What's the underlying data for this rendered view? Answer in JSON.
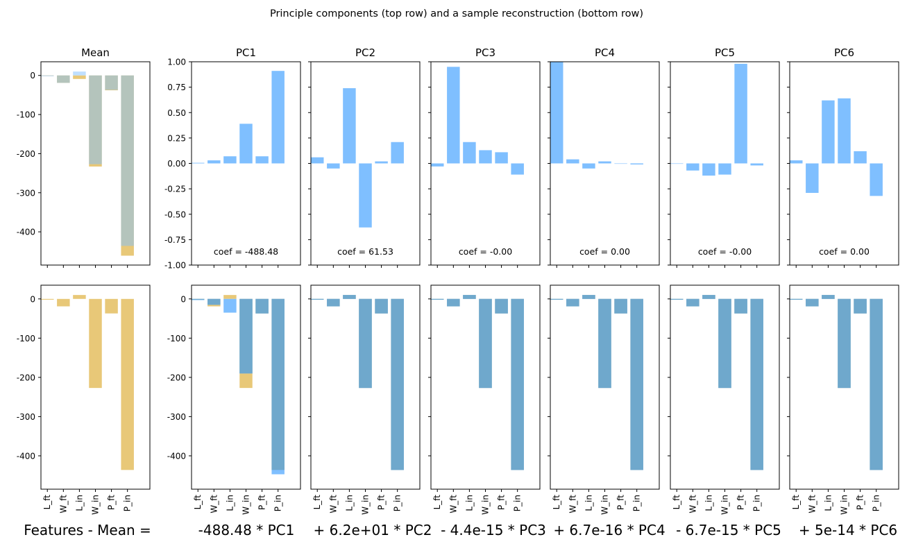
{
  "chart_data": {
    "type": "bar",
    "title": "Principle components (top row) and a sample reconstruction (bottom row)",
    "categories": [
      "L_ft",
      "W_ft",
      "L_in",
      "W_in",
      "P_ft",
      "P_in"
    ],
    "colors": {
      "component": "#7fbfff",
      "mean": "#e8c878",
      "reconstruction": "#6fa8cc",
      "overlap": "#b6b079"
    },
    "top_row": [
      {
        "title": "Mean",
        "ylim": [
          -485,
          35
        ],
        "yticks": [
          0,
          -100,
          -200,
          -300,
          -400
        ],
        "series": [
          {
            "name": "mean",
            "values": [
              0,
              -19,
              -9,
              -233,
              -38,
              -461
            ]
          },
          {
            "name": "sample",
            "values": [
              -2,
              -19,
              10,
              -227,
              -37,
              -436
            ]
          }
        ]
      },
      {
        "title": "PC1",
        "coef": "coef = -488.48",
        "ylim": [
          -1.0,
          1.0
        ],
        "yticks": [
          "1.00",
          "0.75",
          "0.50",
          "0.25",
          "0.00",
          "-0.25",
          "-0.50",
          "-0.75",
          "-1.00"
        ],
        "values": [
          0.006,
          0.03,
          0.07,
          0.39,
          0.07,
          0.91
        ]
      },
      {
        "title": "PC2",
        "coef": "coef = 61.53",
        "ylim": [
          -1.0,
          1.0
        ],
        "values": [
          0.06,
          -0.05,
          0.74,
          -0.63,
          0.02,
          0.21
        ]
      },
      {
        "title": "PC3",
        "coef": "coef = -0.00",
        "ylim": [
          -1.0,
          1.0
        ],
        "values": [
          -0.03,
          0.95,
          0.21,
          0.13,
          0.11,
          -0.11
        ]
      },
      {
        "title": "PC4",
        "coef": "coef = 0.00",
        "ylim": [
          -1.0,
          1.0
        ],
        "values": [
          1.0,
          0.04,
          -0.05,
          0.02,
          0.0,
          -0.01
        ]
      },
      {
        "title": "PC5",
        "coef": "coef = -0.00",
        "ylim": [
          -1.0,
          1.0
        ],
        "values": [
          0.0,
          -0.07,
          -0.12,
          -0.11,
          0.98,
          -0.02
        ]
      },
      {
        "title": "PC6",
        "coef": "coef = 0.00",
        "ylim": [
          -1.0,
          1.0
        ],
        "values": [
          0.03,
          -0.29,
          0.62,
          0.64,
          0.12,
          -0.32
        ]
      }
    ],
    "bottom_row": [
      {
        "label": "Features - Mean =",
        "ylim": [
          -485,
          35
        ],
        "yticks": [
          0,
          -100,
          -200,
          -300,
          -400
        ],
        "series": [
          {
            "name": "target",
            "values": [
              -2,
              -19,
              10,
              -227,
              -37,
              -436
            ]
          }
        ]
      },
      {
        "label": "-488.48 * PC1",
        "series": [
          {
            "name": "target",
            "values": [
              -2,
              -19,
              10,
              -227,
              -37,
              -436
            ]
          },
          {
            "name": "reconstruction",
            "values": [
              -3,
              -15,
              -35,
              -190,
              -37,
              -447
            ]
          }
        ]
      },
      {
        "label": "+ 6.2e+01 * PC2",
        "series": [
          {
            "name": "target",
            "values": [
              -2,
              -19,
              10,
              -227,
              -37,
              -436
            ]
          },
          {
            "name": "reconstruction",
            "values": [
              -2,
              -19,
              10,
              -227,
              -37,
              -436
            ]
          }
        ]
      },
      {
        "label": "- 4.4e-15 * PC3",
        "series": [
          {
            "name": "target",
            "values": [
              -2,
              -19,
              10,
              -227,
              -37,
              -436
            ]
          },
          {
            "name": "reconstruction",
            "values": [
              -2,
              -19,
              10,
              -227,
              -37,
              -436
            ]
          }
        ]
      },
      {
        "label": "+ 6.7e-16 * PC4",
        "series": [
          {
            "name": "target",
            "values": [
              -2,
              -19,
              10,
              -227,
              -37,
              -436
            ]
          },
          {
            "name": "reconstruction",
            "values": [
              -2,
              -19,
              10,
              -227,
              -37,
              -436
            ]
          }
        ]
      },
      {
        "label": "- 6.7e-15 * PC5",
        "series": [
          {
            "name": "target",
            "values": [
              -2,
              -19,
              10,
              -227,
              -37,
              -436
            ]
          },
          {
            "name": "reconstruction",
            "values": [
              -2,
              -19,
              10,
              -227,
              -37,
              -436
            ]
          }
        ]
      },
      {
        "label": "+ 5e-14 * PC6",
        "series": [
          {
            "name": "target",
            "values": [
              -2,
              -19,
              10,
              -227,
              -37,
              -436
            ]
          },
          {
            "name": "reconstruction",
            "values": [
              -2,
              -19,
              10,
              -227,
              -37,
              -436
            ]
          }
        ]
      }
    ]
  }
}
